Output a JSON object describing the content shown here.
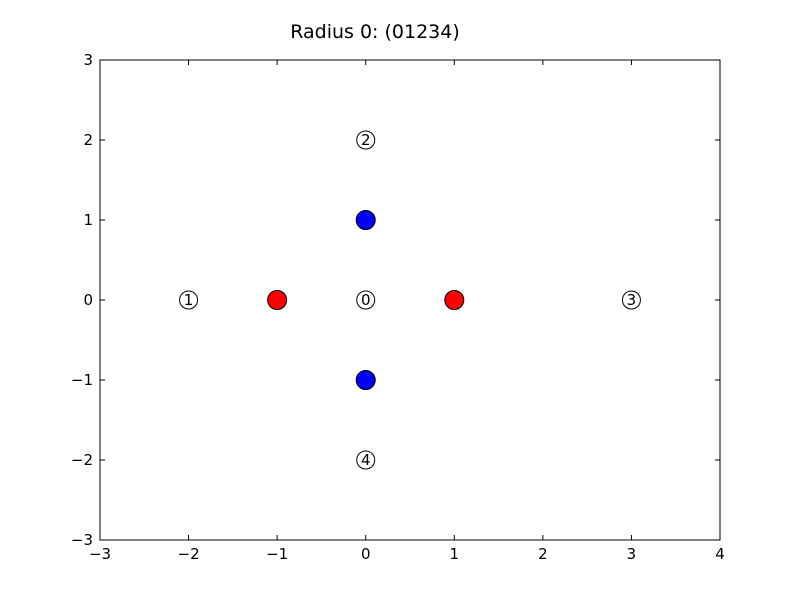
{
  "chart_data": {
    "type": "scatter",
    "title": "Radius 0:  (01234)",
    "xlabel": "",
    "ylabel": "",
    "xlim": [
      -3,
      4
    ],
    "ylim": [
      -3,
      3
    ],
    "xticks": [
      -3,
      -2,
      -1,
      0,
      1,
      2,
      3,
      4
    ],
    "yticks": [
      -3,
      -2,
      -1,
      0,
      1,
      2,
      3
    ],
    "xtick_labels": [
      "−3",
      "−2",
      "−1",
      "0",
      "1",
      "2",
      "3",
      "4"
    ],
    "ytick_labels": [
      "−3",
      "−2",
      "−1",
      "0",
      "1",
      "2",
      "3"
    ],
    "grid": false,
    "series": [
      {
        "color": "#ff0000",
        "points": [
          {
            "x": -1,
            "y": 0
          },
          {
            "x": 1,
            "y": 0
          }
        ]
      },
      {
        "color": "#0000ff",
        "points": [
          {
            "x": 0,
            "y": 1
          },
          {
            "x": 0,
            "y": -1
          }
        ]
      }
    ],
    "annotations": [
      {
        "text": "0",
        "x": 0,
        "y": 0
      },
      {
        "text": "1",
        "x": -2,
        "y": 0
      },
      {
        "text": "2",
        "x": 0,
        "y": 2
      },
      {
        "text": "3",
        "x": 3,
        "y": 0
      },
      {
        "text": "4",
        "x": 0,
        "y": -2
      }
    ]
  }
}
